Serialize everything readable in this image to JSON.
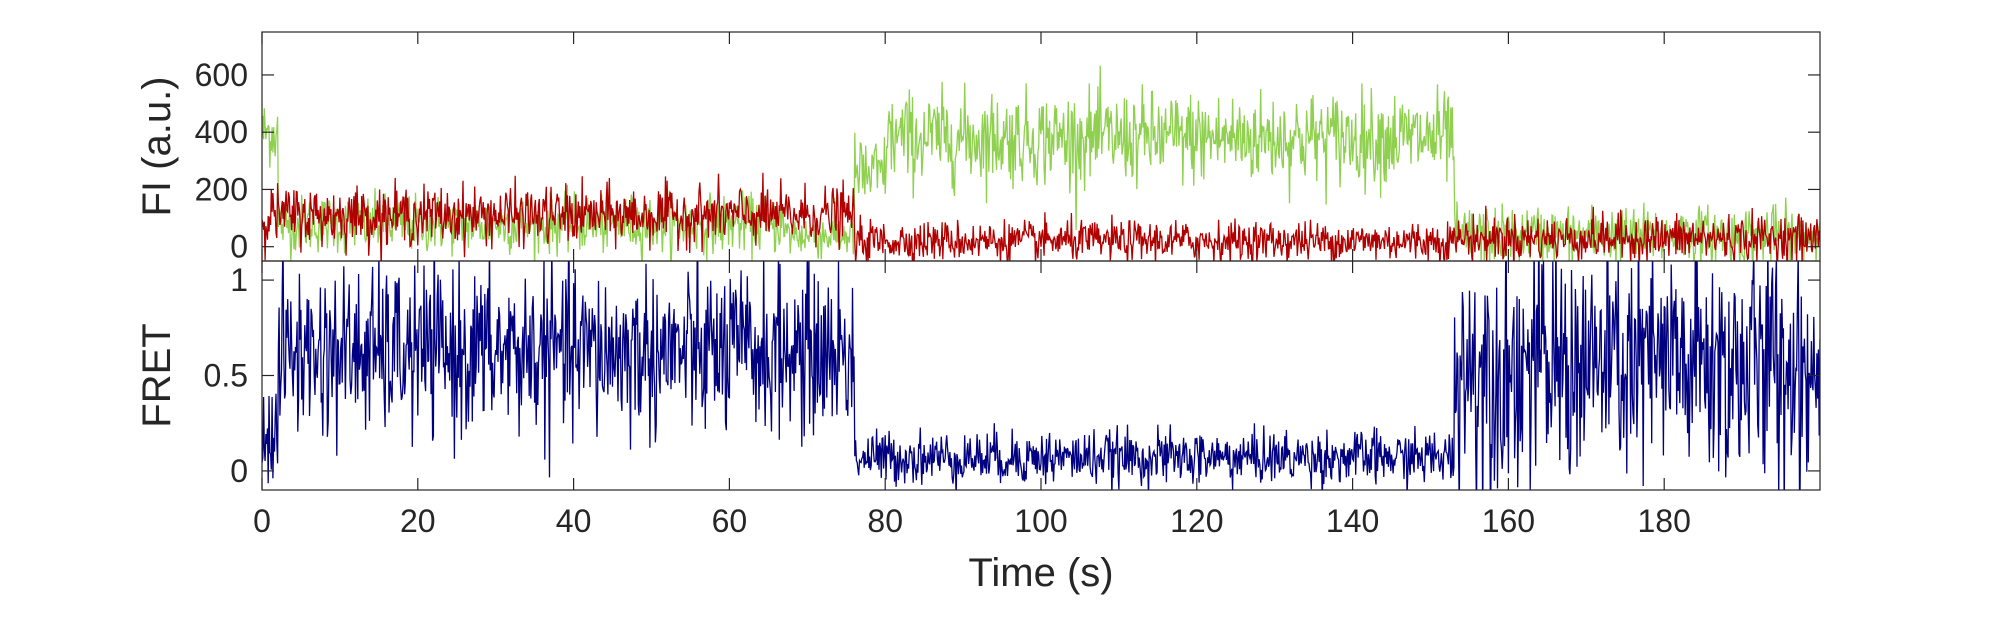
{
  "chart_data": [
    {
      "type": "line",
      "title": "",
      "ylabel": "FI (a.u.)",
      "xlim": [
        0,
        200
      ],
      "ylim": [
        -50,
        750
      ],
      "yticks": [
        0,
        200,
        400,
        600
      ],
      "grid": false,
      "legend": "none",
      "series": [
        {
          "color": "#8fd14f",
          "segments": [
            {
              "x0": 0,
              "x1": 2,
              "mean": 400,
              "sd": 60
            },
            {
              "x0": 2,
              "x1": 67,
              "mean": 80,
              "sd": 50
            },
            {
              "x0": 67,
              "x1": 76,
              "mean": 40,
              "sd": 40
            },
            {
              "x0": 76,
              "x1": 80,
              "mean": 250,
              "sd": 70
            },
            {
              "x0": 80,
              "x1": 153,
              "mean": 380,
              "sd": 80
            },
            {
              "x0": 153,
              "x1": 200,
              "mean": 40,
              "sd": 50
            }
          ]
        },
        {
          "color": "#b00000",
          "segments": [
            {
              "x0": 0,
              "x1": 76,
              "mean": 110,
              "sd": 50
            },
            {
              "x0": 76,
              "x1": 153,
              "mean": 20,
              "sd": 35
            },
            {
              "x0": 153,
              "x1": 200,
              "mean": 30,
              "sd": 40
            }
          ]
        }
      ]
    },
    {
      "type": "line",
      "title": "",
      "xlabel": "Time (s)",
      "ylabel": "FRET",
      "xlim": [
        0,
        200
      ],
      "ylim": [
        -0.1,
        1.1
      ],
      "xticks": [
        0,
        20,
        40,
        60,
        80,
        100,
        120,
        140,
        160,
        180
      ],
      "yticks": [
        0,
        0.5,
        1
      ],
      "grid": false,
      "legend": "none",
      "series": [
        {
          "color": "#000080",
          "segments": [
            {
              "x0": 0,
              "x1": 2,
              "mean": 0.2,
              "sd": 0.15
            },
            {
              "x0": 2,
              "x1": 76,
              "mean": 0.62,
              "sd": 0.22
            },
            {
              "x0": 76,
              "x1": 153,
              "mean": 0.07,
              "sd": 0.07
            },
            {
              "x0": 153,
              "x1": 200,
              "mean": 0.55,
              "sd": 0.32
            }
          ]
        }
      ]
    }
  ]
}
